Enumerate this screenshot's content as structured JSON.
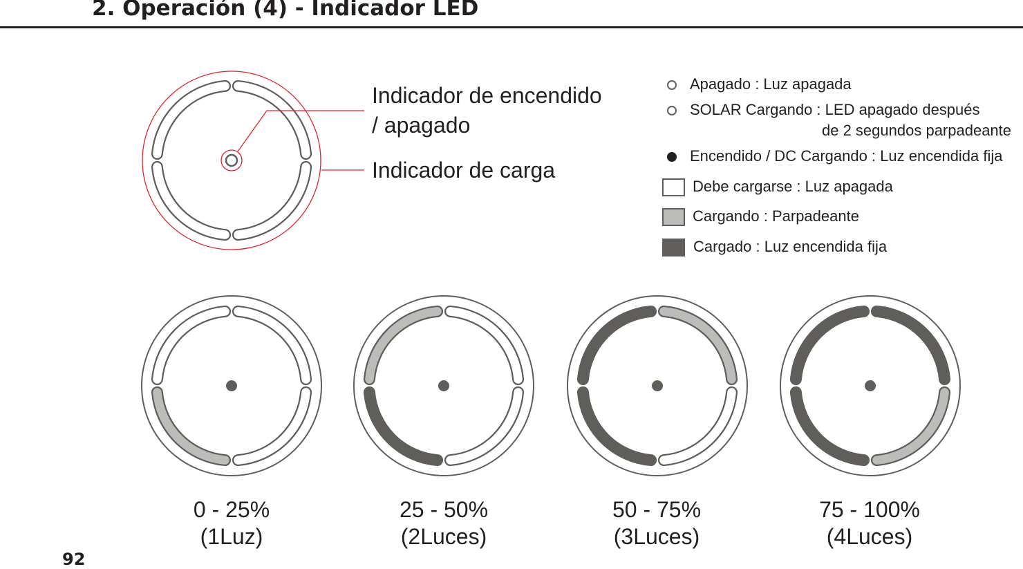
{
  "header": {
    "title": "2. Operación (4) - Indicador LED"
  },
  "diagram": {
    "callout_power": [
      "Indicador de encendido",
      "/ apagado"
    ],
    "callout_charge": "Indicador de carga",
    "accent_color": "#e5232b"
  },
  "legend": {
    "items": [
      {
        "icon": "hollow-circle",
        "text": "Apagado : Luz apagada"
      },
      {
        "icon": "hollow-circle",
        "text": "SOLAR Cargando : LED apagado después",
        "text2": "de 2 segundos parpadeante"
      },
      {
        "icon": "filled-circle",
        "text": "Encendido / DC Cargando : Luz encendida fija"
      },
      {
        "icon": "empty-square",
        "text": "Debe cargarse : Luz apagada"
      },
      {
        "icon": "light-gray-square",
        "text": "Cargando : Parpadeante"
      },
      {
        "icon": "dark-gray-square",
        "text": "Cargado : Luz encendida fija"
      }
    ],
    "colors": {
      "empty": "#ffffff",
      "light": "#bcbcbb",
      "dark": "#5f5e5a"
    }
  },
  "levels": [
    {
      "range": "0 - 25%",
      "lights": "(1Luz)",
      "segments": {
        "top_left": "empty",
        "top_right": "empty",
        "bottom_left": "light",
        "bottom_right": "empty"
      }
    },
    {
      "range": "25 - 50%",
      "lights": "(2Luces)",
      "segments": {
        "top_left": "light",
        "top_right": "empty",
        "bottom_left": "dark",
        "bottom_right": "empty"
      }
    },
    {
      "range": "50 - 75%",
      "lights": "(3Luces)",
      "segments": {
        "top_left": "dark",
        "top_right": "light",
        "bottom_left": "dark",
        "bottom_right": "empty"
      }
    },
    {
      "range": "75 - 100%",
      "lights": "(4Luces)",
      "segments": {
        "top_left": "dark",
        "top_right": "dark",
        "bottom_left": "dark",
        "bottom_right": "light"
      }
    }
  ],
  "page_number": "92"
}
